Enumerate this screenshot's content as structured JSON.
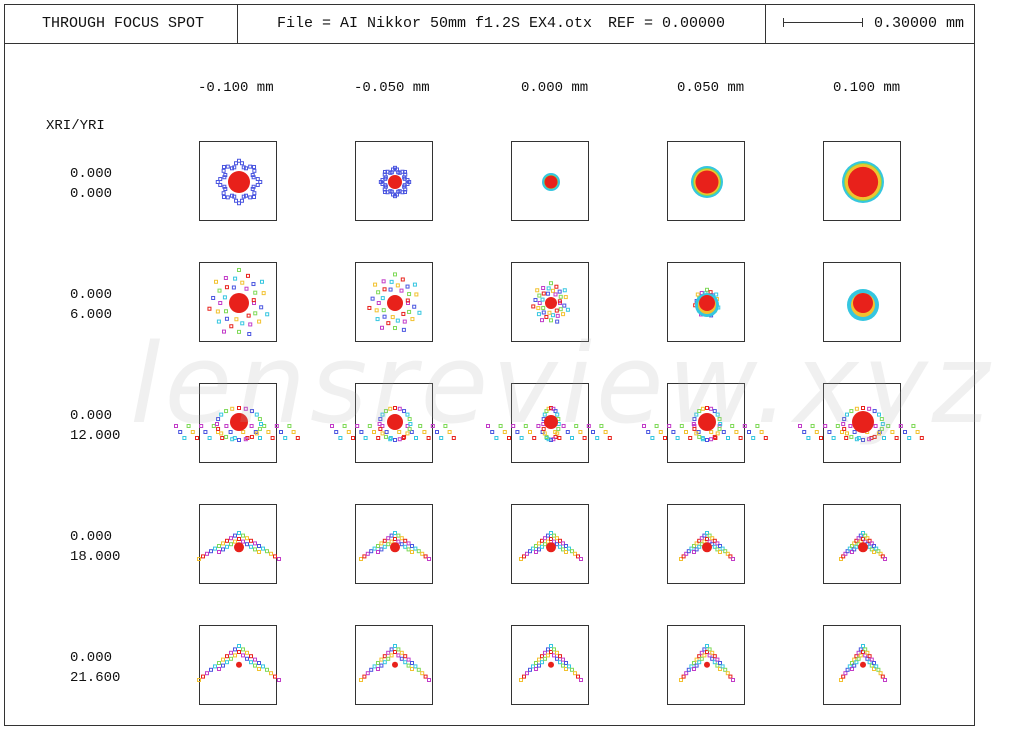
{
  "header": {
    "title": "THROUGH FOCUS SPOT",
    "file": "File = AI Nikkor 50mm f1.2S EX4.otx",
    "ref": "REF = 0.00000",
    "scale": "0.30000 mm"
  },
  "columns": [
    "-0.100  mm",
    "-0.050  mm",
    "0.000  mm",
    "0.050  mm",
    "0.100  mm"
  ],
  "field_header": "XRI/YRI",
  "rows": [
    {
      "x": "0.000",
      "y": "0.000"
    },
    {
      "x": "0.000",
      "y": "6.000"
    },
    {
      "x": "0.000",
      "y": "12.000"
    },
    {
      "x": "0.000",
      "y": "18.000"
    },
    {
      "x": "0.000",
      "y": "21.600"
    }
  ],
  "watermark": "lensreview.xyz",
  "colors": {
    "wl1": "#e8211b",
    "wl2": "#f2c12e",
    "wl3": "#7ed957",
    "wl4": "#35c6e0",
    "wl5": "#4a55e0",
    "wl6": "#c23cc8"
  }
}
